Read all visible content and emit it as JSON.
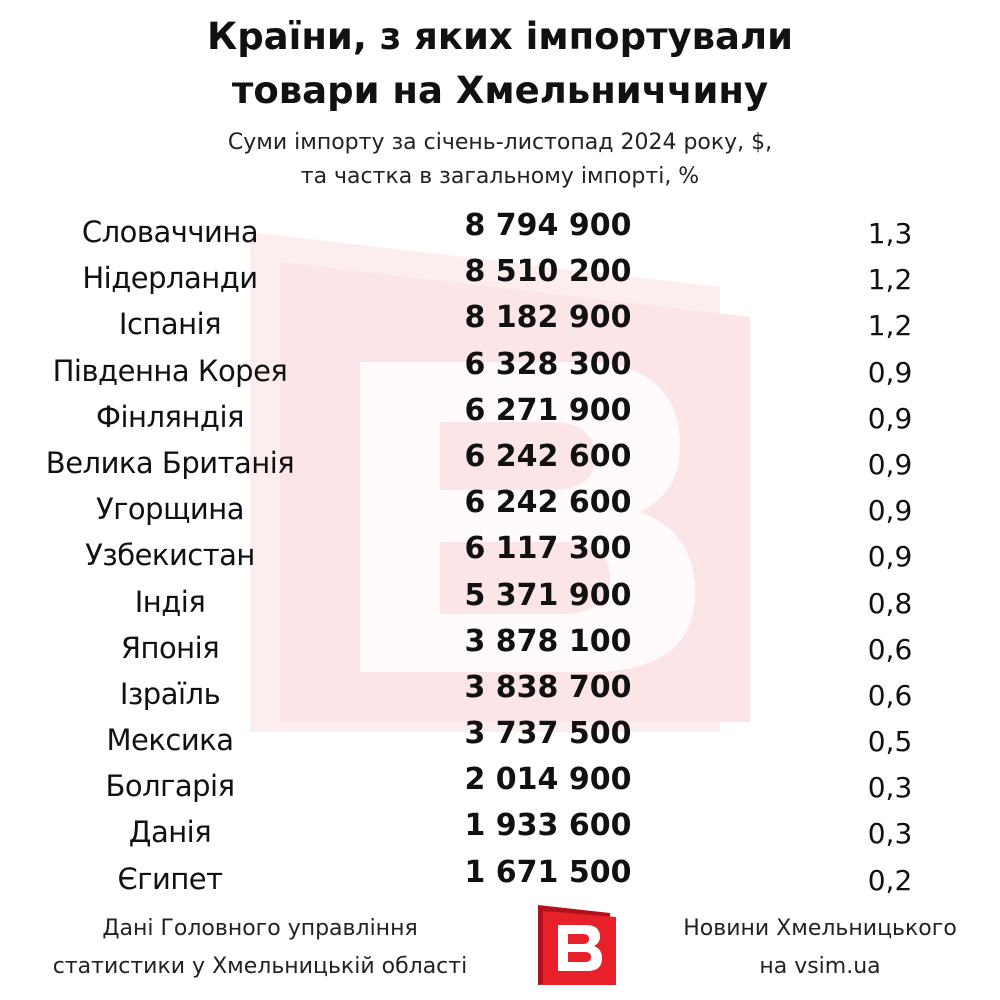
{
  "title": [
    "Країни, з яких імпортували",
    "товари на Хмельниччину"
  ],
  "subtitle": [
    "Суми імпорту за січень-листопад 2024 року, $,",
    "та частка в загальному імпорті, %"
  ],
  "chart_data": {
    "type": "table",
    "columns": [
      "country",
      "import_usd",
      "share_percent"
    ],
    "rows": [
      {
        "country": "Словаччина",
        "amount": "8 794 900",
        "share": "1,3"
      },
      {
        "country": "Нідерланди",
        "amount": "8 510 200",
        "share": "1,2"
      },
      {
        "country": "Іспанія",
        "amount": "8 182 900",
        "share": "1,2"
      },
      {
        "country": "Південна Корея",
        "amount": "6 328 300",
        "share": "0,9"
      },
      {
        "country": "Фінляндія",
        "amount": "6 271 900",
        "share": "0,9"
      },
      {
        "country": "Велика Британія",
        "amount": "6 242 600",
        "share": "0,9"
      },
      {
        "country": "Угорщина",
        "amount": "6 242 600",
        "share": "0,9"
      },
      {
        "country": "Узбекистан",
        "amount": "6 117 300",
        "share": "0,9"
      },
      {
        "country": "Індія",
        "amount": "5 371 900",
        "share": "0,8"
      },
      {
        "country": "Японія",
        "amount": "3 878 100",
        "share": "0,6"
      },
      {
        "country": "Ізраїль",
        "amount": "3 838 700",
        "share": "0,6"
      },
      {
        "country": "Мексика",
        "amount": "3 737 500",
        "share": "0,5"
      },
      {
        "country": "Болгарія",
        "amount": "2 014 900",
        "share": "0,3"
      },
      {
        "country": "Данія",
        "amount": "1 933 600",
        "share": "0,3"
      },
      {
        "country": "Єгипет",
        "amount": "1 671 500",
        "share": "0,2"
      }
    ]
  },
  "footer": {
    "source": [
      "Дані Головного управління",
      "статистики у Хмельницькій області"
    ],
    "publisher": [
      "Новини Хмельницького",
      "на vsim.ua"
    ]
  },
  "logo": {
    "letter": "B",
    "icon": "vsim-logo-icon",
    "color_main": "#e8202a",
    "color_dark": "#b0121b",
    "watermark_color": "#fbe3e4"
  }
}
